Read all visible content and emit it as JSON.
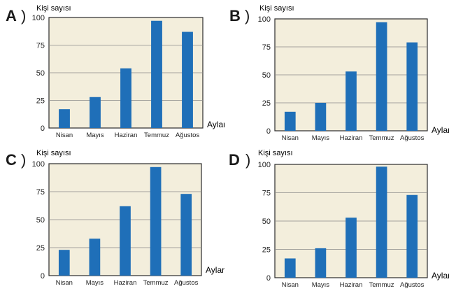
{
  "chart_data": [
    {
      "type": "bar",
      "option": "A",
      "paren": ")",
      "ylabel": "Kişi sayısı",
      "xlabel": "Aylar",
      "categories": [
        "Nisan",
        "Mayıs",
        "Haziran",
        "Temmuz",
        "Ağustos"
      ],
      "values": [
        17,
        28,
        54,
        97,
        87
      ],
      "yticks": [
        "0",
        "25",
        "50",
        "75",
        "100"
      ],
      "ylim": [
        0,
        100
      ],
      "bar_color": "#1f6fb8",
      "plot_bg": "#f3eedc",
      "grid": true
    },
    {
      "type": "bar",
      "option": "B",
      "paren": ")",
      "ylabel": "Kişi sayısı",
      "xlabel": "Aylar",
      "categories": [
        "Nisan",
        "Mayıs",
        "Haziran",
        "Temmuz",
        "Ağustos"
      ],
      "values": [
        17,
        25,
        53,
        97,
        79
      ],
      "yticks": [
        "0",
        "25",
        "50",
        "75",
        "100"
      ],
      "ylim": [
        0,
        100
      ],
      "bar_color": "#1f6fb8",
      "plot_bg": "#f3eedc",
      "grid": true
    },
    {
      "type": "bar",
      "option": "C",
      "paren": ")",
      "ylabel": "Kişi sayısı",
      "xlabel": "Aylar",
      "categories": [
        "Nisan",
        "Mayıs",
        "Haziran",
        "Temmuz",
        "Ağustos"
      ],
      "values": [
        23,
        33,
        62,
        97,
        73
      ],
      "yticks": [
        "0",
        "25",
        "50",
        "75",
        "100"
      ],
      "ylim": [
        0,
        100
      ],
      "bar_color": "#1f6fb8",
      "plot_bg": "#f3eedc",
      "grid": true
    },
    {
      "type": "bar",
      "option": "D",
      "paren": ")",
      "ylabel": "Kişi sayısı",
      "xlabel": "Aylar",
      "categories": [
        "Nisan",
        "Mayıs",
        "Haziran",
        "Temmuz",
        "Ağustos"
      ],
      "values": [
        17,
        26,
        53,
        98,
        73
      ],
      "yticks": [
        "0",
        "25",
        "50",
        "75",
        "100"
      ],
      "ylim": [
        0,
        100
      ],
      "bar_color": "#1f6fb8",
      "plot_bg": "#f3eedc",
      "grid": true
    }
  ]
}
